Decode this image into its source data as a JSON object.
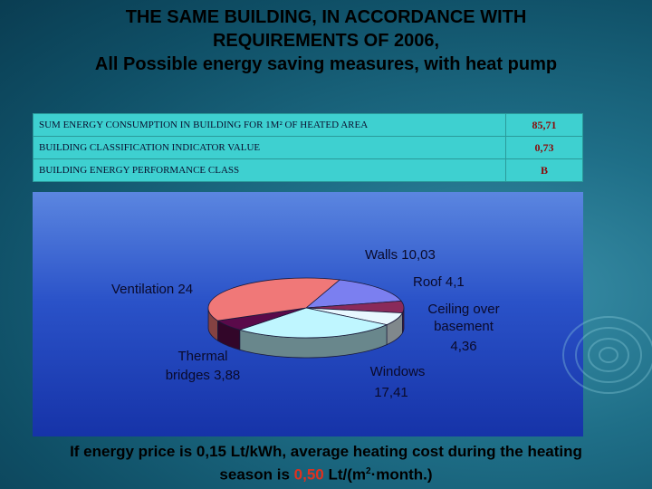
{
  "title": {
    "line1": "THE SAME BUILDING, IN ACCORDANCE WITH",
    "line2": "REQUIREMENTS OF 2006,",
    "line3": "All Possible energy saving measures, with heat pump"
  },
  "table": {
    "rows": [
      {
        "label": "SUM ENERGY CONSUMPTION IN BUILDING FOR 1M² OF HEATED AREA",
        "value": "85,71"
      },
      {
        "label": "BUILDING CLASSIFICATION INDICATOR VALUE",
        "value": "0,73"
      },
      {
        "label": "BUILDING ENERGY PERFORMANCE CLASS",
        "value": "B"
      }
    ]
  },
  "chart_data": {
    "type": "pie",
    "slices": [
      {
        "label": "Walls 10,03",
        "value": 10.03,
        "color": "#7b7ff0"
      },
      {
        "label": "Roof 4,1",
        "value": 4.1,
        "color": "#8a2a5a"
      },
      {
        "label": "Ceiling over basement 4,36",
        "value": 4.36,
        "color": "#e8f8ff"
      },
      {
        "label": "Windows 17,41",
        "value": 17.41,
        "color": "#bff6ff"
      },
      {
        "label": "Thermal bridges 3,88",
        "value": 3.88,
        "color": "#5a0a4a"
      },
      {
        "label": "Ventilation 24",
        "value": 24,
        "color": "#f07878"
      }
    ],
    "labels": {
      "walls": "Walls 10,03",
      "roof": "Roof 4,1",
      "ceiling_1": "Ceiling over",
      "ceiling_2": "basement",
      "ceiling_3": "4,36",
      "windows_1": "Windows",
      "windows_2": "17,41",
      "thermal_1": "Thermal",
      "thermal_2": "bridges 3,88",
      "ventilation": "Ventilation 24"
    }
  },
  "footer": {
    "part1": "If energy price is 0,15 Lt/kWh, average heating cost during the heating",
    "part2a": "season is ",
    "price": "0,50",
    "part2b": " Lt/(m",
    "sup": "2",
    "part2c": "·month.)"
  }
}
